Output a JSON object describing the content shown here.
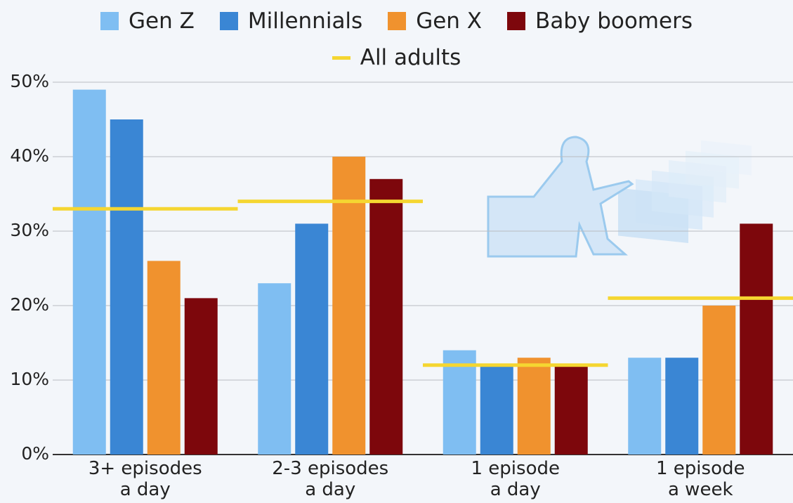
{
  "chart_data": {
    "type": "bar",
    "categories": [
      "3+ episodes\na day",
      "2-3 episodes\na day",
      "1 episode\na day",
      "1 episode\na week"
    ],
    "series": [
      {
        "name": "Gen Z",
        "color": "#7fbef2",
        "values": [
          49,
          23,
          14,
          13
        ]
      },
      {
        "name": "Millennials",
        "color": "#3a86d4",
        "values": [
          45,
          31,
          12,
          13
        ]
      },
      {
        "name": "Gen X",
        "color": "#f0922e",
        "values": [
          26,
          40,
          13,
          20
        ]
      },
      {
        "name": "Baby boomers",
        "color": "#7d070c",
        "values": [
          21,
          37,
          12,
          31
        ]
      }
    ],
    "average": {
      "name": "All adults",
      "color": "#f5d631",
      "values": [
        33,
        34,
        12,
        21
      ]
    },
    "ylim": [
      0,
      50
    ],
    "yticks": [
      {
        "value": 0,
        "label": "0%"
      },
      {
        "value": 10,
        "label": "10%"
      },
      {
        "value": 20,
        "label": "20%"
      },
      {
        "value": 30,
        "label": "30%"
      },
      {
        "value": 40,
        "label": "40%"
      },
      {
        "value": 50,
        "label": "50%"
      }
    ],
    "grid": true
  }
}
